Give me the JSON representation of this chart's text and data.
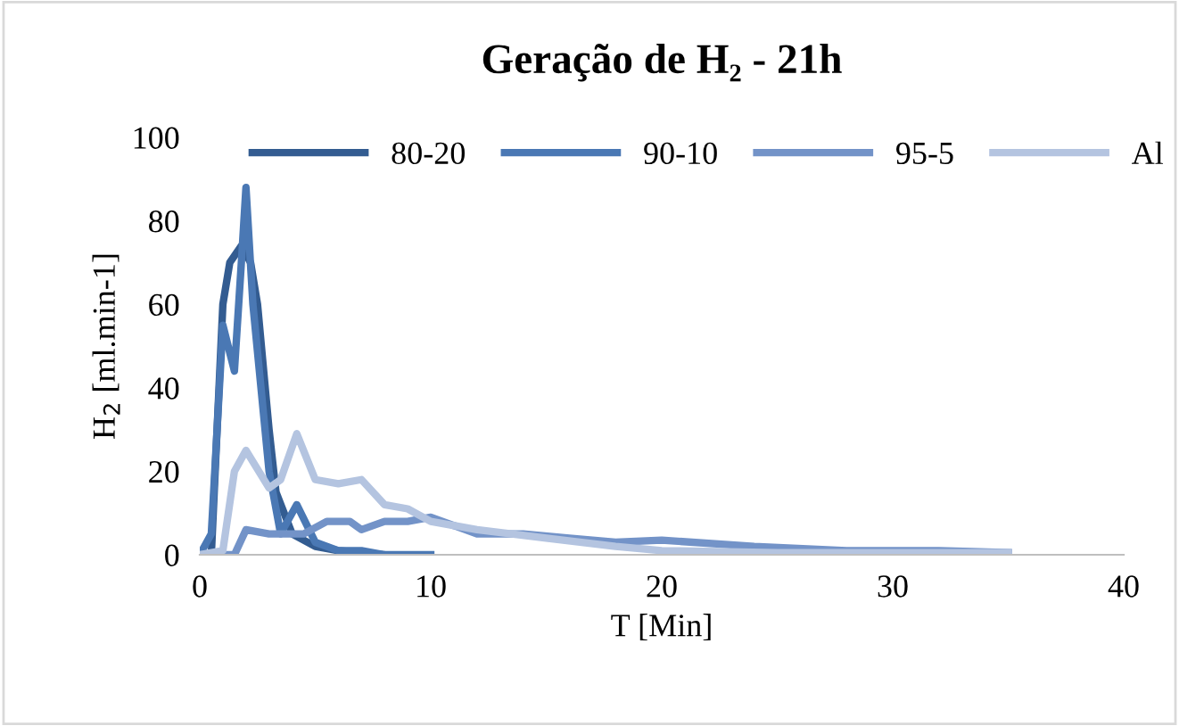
{
  "chart_data": {
    "type": "line",
    "title": "Geração de H₂ - 21h",
    "xlabel": "T [Min]",
    "ylabel": "H$_{2}$ [ml.min-1]",
    "xlim": [
      0,
      40
    ],
    "xticks": [
      0,
      10,
      20,
      30,
      40
    ],
    "ylim": [
      0,
      100
    ],
    "yticks": [
      0,
      20,
      40,
      60,
      80,
      100
    ],
    "grid": false,
    "legend": "top",
    "marker": "none",
    "line_style": "solid",
    "series": [
      {
        "name": "80-20",
        "color": "#335c91",
        "x": [
          0,
          0.5,
          1,
          1.3,
          1.8,
          2.2,
          2.5,
          3,
          3.3,
          4,
          5,
          6,
          7,
          8
        ],
        "values": [
          0,
          0,
          60,
          70,
          74,
          70,
          60,
          30,
          15,
          5,
          2,
          1,
          0.5,
          0
        ]
      },
      {
        "name": "90-10",
        "color": "#4a78b4",
        "x": [
          0,
          0.5,
          1,
          1.5,
          1.8,
          2,
          2.3,
          3,
          3.5,
          4.2,
          5,
          6,
          7,
          8,
          10
        ],
        "values": [
          0,
          5,
          55,
          44,
          70,
          88,
          60,
          20,
          5,
          12,
          3,
          1,
          1,
          0,
          0
        ]
      },
      {
        "name": "95-5",
        "color": "#7393c8",
        "x": [
          0,
          1,
          1.5,
          2,
          3,
          4.5,
          5.5,
          6.5,
          7,
          8,
          9,
          10,
          11,
          12,
          14,
          16,
          18,
          20,
          24,
          28,
          32,
          35
        ],
        "values": [
          0,
          0,
          0,
          6,
          5,
          5,
          8,
          8,
          6,
          8,
          8,
          9,
          7,
          5,
          5,
          4,
          3,
          3.5,
          2,
          1,
          1,
          0.5
        ]
      },
      {
        "name": "Al",
        "color": "#b4c4e0",
        "x": [
          0,
          1,
          1.5,
          2,
          3,
          3.5,
          4.2,
          5,
          6,
          7,
          8,
          9,
          10,
          12,
          15,
          18,
          20,
          25,
          30,
          35
        ],
        "values": [
          0,
          1,
          20,
          25,
          16,
          18,
          29,
          18,
          17,
          18,
          12,
          11,
          8,
          6,
          4,
          2,
          1,
          0.5,
          0.5,
          0.5
        ]
      }
    ]
  }
}
